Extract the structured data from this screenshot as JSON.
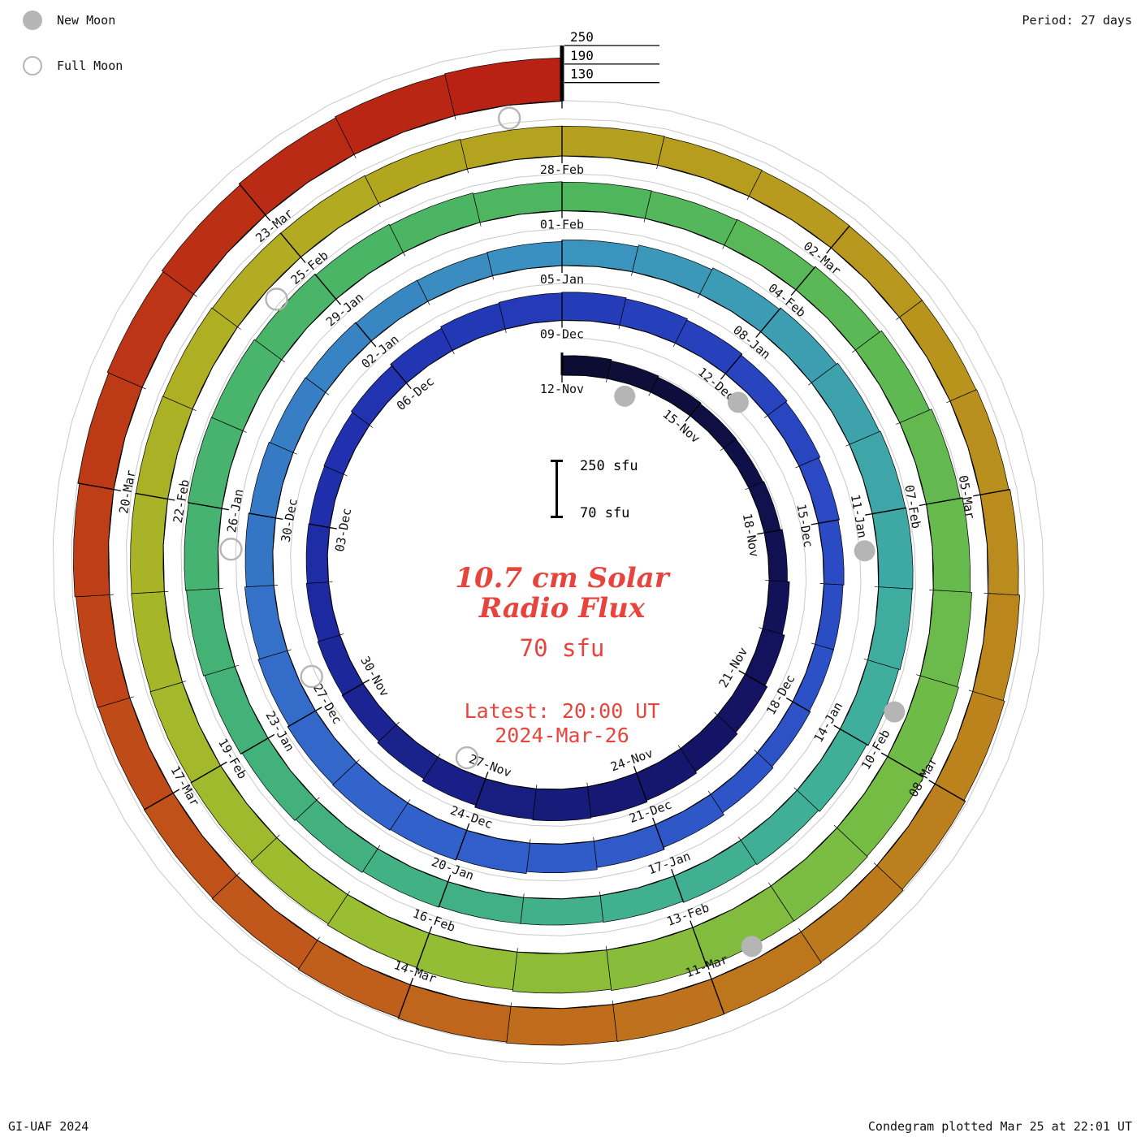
{
  "legend": {
    "new_moon": "New Moon",
    "full_moon": "Full Moon"
  },
  "period_label": "Period: 27 days",
  "credit_left": "GI-UAF 2024",
  "credit_right": "Condegram plotted Mar 25 at 22:01 UT",
  "center": {
    "title_line1": "10.7 cm Solar",
    "title_line2": "Radio Flux",
    "value": "70 sfu",
    "latest_line1": "Latest: 20:00 UT",
    "latest_line2": "2024-Mar-26",
    "scale_top": "250 sfu",
    "scale_bottom": "70 sfu"
  },
  "chart_data": {
    "type": "spiral-bar",
    "description": "Condegram: daily 10.7 cm solar radio flux drawn as bars on an outward spiral, one turn = 27 days (one solar rotation), baseline 70 sfu",
    "title": "10.7 cm Solar Radio Flux",
    "period_days": 27,
    "start_label": "12-Nov",
    "end_label": "26-Mar",
    "flux_baseline_sfu": 70,
    "flux_max_sfu": 250,
    "radial_tick_values": [
      130,
      190,
      250
    ],
    "label_step_days": 3,
    "date_labels": [
      "12-Nov",
      "15-Nov",
      "18-Nov",
      "21-Nov",
      "24-Nov",
      "27-Nov",
      "30-Nov",
      "03-Dec",
      "06-Dec",
      "09-Dec",
      "12-Dec",
      "15-Dec",
      "18-Dec",
      "21-Dec",
      "24-Dec",
      "27-Dec",
      "30-Dec",
      "02-Jan",
      "05-Jan",
      "08-Jan",
      "11-Jan",
      "14-Jan",
      "17-Jan",
      "20-Jan",
      "23-Jan",
      "26-Jan",
      "29-Jan",
      "01-Feb",
      "04-Feb",
      "07-Feb",
      "10-Feb",
      "13-Feb",
      "16-Feb",
      "19-Feb",
      "22-Feb",
      "25-Feb",
      "28-Feb",
      "02-Mar",
      "05-Mar",
      "08-Mar",
      "11-Mar",
      "14-Mar",
      "17-Mar",
      "20-Mar",
      "23-Mar"
    ],
    "daily_flux_sfu": [
      133,
      128,
      124,
      121,
      120,
      123,
      129,
      136,
      144,
      152,
      159,
      165,
      170,
      172,
      169,
      162,
      154,
      148,
      145,
      142,
      139,
      137,
      139,
      144,
      150,
      156,
      159,
      161,
      158,
      154,
      149,
      144,
      139,
      135,
      132,
      132,
      136,
      141,
      149,
      156,
      163,
      169,
      173,
      176,
      174,
      169,
      164,
      159,
      155,
      151,
      149,
      147,
      146,
      148,
      153,
      159,
      165,
      171,
      176,
      179,
      181,
      179,
      175,
      170,
      165,
      161,
      157,
      155,
      155,
      158,
      162,
      167,
      172,
      176,
      179,
      181,
      180,
      176,
      172,
      168,
      164,
      162,
      161,
      163,
      168,
      175,
      182,
      189,
      195,
      200,
      204,
      206,
      205,
      202,
      198,
      193,
      188,
      184,
      181,
      179,
      177,
      176,
      175,
      174,
      172,
      171,
      169,
      167,
      166,
      164,
      163,
      162,
      162,
      164,
      168,
      173,
      178,
      183,
      187,
      190,
      191,
      189,
      186,
      183,
      180,
      178,
      177,
      179,
      183,
      188,
      193,
      198,
      203,
      207,
      210
    ],
    "moons": {
      "new_moon_day_index": [
        1,
        30,
        60,
        89,
        119
      ],
      "full_moon_day_index": [
        15,
        45,
        74,
        104,
        134
      ]
    },
    "color_stops": [
      [
        0.0,
        "#0d0d33"
      ],
      [
        0.08,
        "#15156b"
      ],
      [
        0.16,
        "#1f2fae"
      ],
      [
        0.24,
        "#2a49c3"
      ],
      [
        0.32,
        "#3263cb"
      ],
      [
        0.4,
        "#3b93bf"
      ],
      [
        0.46,
        "#3fae9d"
      ],
      [
        0.54,
        "#44b277"
      ],
      [
        0.6,
        "#4eb65f"
      ],
      [
        0.66,
        "#6cbb4a"
      ],
      [
        0.72,
        "#9cbe30"
      ],
      [
        0.78,
        "#b2ab20"
      ],
      [
        0.84,
        "#b9921d"
      ],
      [
        0.9,
        "#bf6f1d"
      ],
      [
        0.95,
        "#bf4217"
      ],
      [
        1.0,
        "#b82114"
      ]
    ],
    "guide_color": "#c8c8c8",
    "moon_color": "#b5b5b5",
    "accent_red": "#e8443e"
  }
}
